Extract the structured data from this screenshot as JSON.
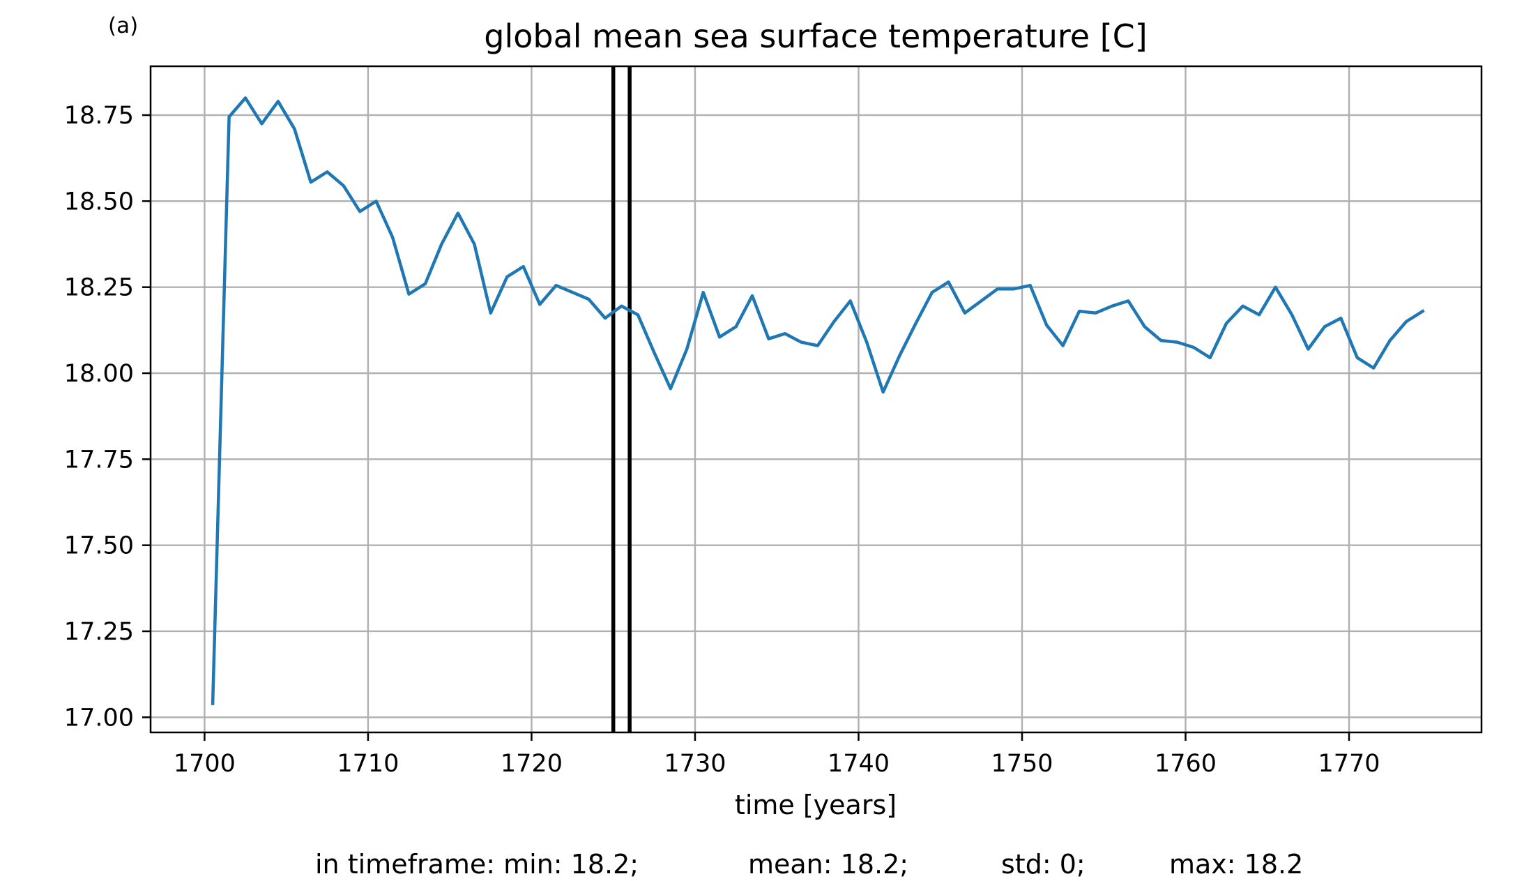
{
  "panel_label": "(a)",
  "footer": {
    "stats": [
      "in timeframe: min: 18.2;",
      "mean: 18.2;",
      "std: 0;",
      "max: 18.2"
    ]
  },
  "chart_data": {
    "type": "line",
    "title": "global mean sea surface temperature [C]",
    "xlabel": "time [years]",
    "ylabel": "",
    "xlim": [
      1696.7,
      1778.1
    ],
    "ylim": [
      16.956,
      18.892
    ],
    "xticks": [
      1700,
      1710,
      1720,
      1730,
      1740,
      1750,
      1760,
      1770
    ],
    "xtick_labels": [
      "1700",
      "1710",
      "1720",
      "1730",
      "1740",
      "1750",
      "1760",
      "1770"
    ],
    "yticks": [
      17.0,
      17.25,
      17.5,
      17.75,
      18.0,
      18.25,
      18.5,
      18.75
    ],
    "ytick_labels": [
      "17.00",
      "17.25",
      "17.50",
      "17.75",
      "18.00",
      "18.25",
      "18.50",
      "18.75"
    ],
    "grid": true,
    "line_color": "#1f77b4",
    "marker_color": "#000000",
    "vertical_lines": [
      1725.0,
      1726.0
    ],
    "series": [
      {
        "x": [
          1700.5,
          1701.5,
          1702.5,
          1703.5,
          1704.5,
          1705.5,
          1706.5,
          1707.5,
          1708.5,
          1709.5,
          1710.5,
          1711.5,
          1712.5,
          1713.5,
          1714.5,
          1715.5,
          1716.5,
          1717.5,
          1718.5,
          1719.5,
          1720.5,
          1721.5,
          1722.5,
          1723.5,
          1724.5,
          1725.5,
          1726.5,
          1727.5,
          1728.5,
          1729.5,
          1730.5,
          1731.5,
          1732.5,
          1733.5,
          1734.5,
          1735.5,
          1736.5,
          1737.5,
          1738.5,
          1739.5,
          1740.5,
          1741.5,
          1742.5,
          1743.5,
          1744.5,
          1745.5,
          1746.5,
          1747.5,
          1748.5,
          1749.5,
          1750.5,
          1751.5,
          1752.5,
          1753.5,
          1754.5,
          1755.5,
          1756.5,
          1757.5,
          1758.5,
          1759.5,
          1760.5,
          1761.5,
          1762.5,
          1763.5,
          1764.5,
          1765.5,
          1766.5,
          1767.5,
          1768.5,
          1769.5,
          1770.5,
          1771.5,
          1772.5,
          1773.5,
          1774.5
        ],
        "values": [
          17.04,
          18.745,
          18.8,
          18.725,
          18.79,
          18.71,
          18.555,
          18.585,
          18.545,
          18.47,
          18.5,
          18.395,
          18.23,
          18.26,
          18.375,
          18.465,
          18.375,
          18.175,
          18.28,
          18.31,
          18.2,
          18.255,
          18.235,
          18.215,
          18.16,
          18.195,
          18.17,
          18.06,
          17.955,
          18.07,
          18.235,
          18.105,
          18.135,
          18.225,
          18.1,
          18.115,
          18.09,
          18.08,
          18.15,
          18.21,
          18.09,
          17.945,
          18.05,
          18.145,
          18.235,
          18.265,
          18.175,
          18.21,
          18.245,
          18.245,
          18.255,
          18.14,
          18.08,
          18.18,
          18.175,
          18.195,
          18.21,
          18.135,
          18.095,
          18.09,
          18.075,
          18.045,
          18.145,
          18.195,
          18.17,
          18.25,
          18.17,
          18.07,
          18.135,
          18.16,
          18.045,
          18.015,
          18.095,
          18.15,
          18.18
        ]
      }
    ]
  }
}
